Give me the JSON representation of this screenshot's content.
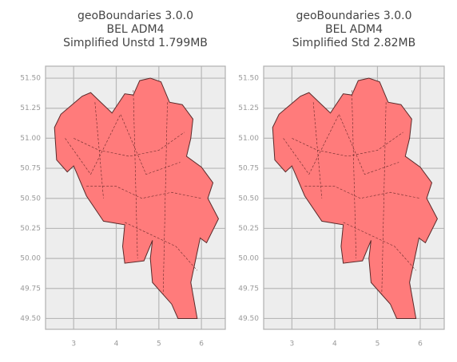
{
  "chart_data": [
    {
      "type": "map",
      "title": [
        "geoBoundaries 3.0.0",
        "BEL ADM4",
        "Simplified Unstd 1.799MB"
      ],
      "xlim": [
        2.34,
        6.56
      ],
      "ylim": [
        49.41,
        51.6
      ],
      "xticks": [
        3,
        4,
        5,
        6
      ],
      "yticks": [
        {
          "value": 49.5,
          "label": "49.50"
        },
        {
          "value": 49.75,
          "label": "49.75"
        },
        {
          "value": 50,
          "label": "50.00"
        },
        {
          "value": 50.25,
          "label": "50.25"
        },
        {
          "value": 50.5,
          "label": "50.50"
        },
        {
          "value": 50.75,
          "label": "50.75"
        },
        {
          "value": 51,
          "label": "51.00"
        },
        {
          "value": 51.25,
          "label": "51.25"
        },
        {
          "value": 51.5,
          "label": "51.50"
        }
      ],
      "grid": true,
      "color": "#ff7b7b"
    },
    {
      "type": "map",
      "title": [
        "geoBoundaries 3.0.0",
        "BEL ADM4",
        "Simplified Std 2.82MB"
      ],
      "xlim": [
        2.34,
        6.56
      ],
      "ylim": [
        49.41,
        51.6
      ],
      "xticks": [
        3,
        4,
        5,
        6
      ],
      "yticks": [
        {
          "value": 49.5,
          "label": "49.50"
        },
        {
          "value": 49.75,
          "label": "49.75"
        },
        {
          "value": 50,
          "label": "50.00"
        },
        {
          "value": 50.25,
          "label": "50.25"
        },
        {
          "value": 50.5,
          "label": "50.50"
        },
        {
          "value": 50.75,
          "label": "50.75"
        },
        {
          "value": 51,
          "label": "51.00"
        },
        {
          "value": 51.25,
          "label": "51.25"
        },
        {
          "value": 51.5,
          "label": "51.50"
        }
      ],
      "grid": true,
      "color": "#ff7b7b"
    }
  ]
}
